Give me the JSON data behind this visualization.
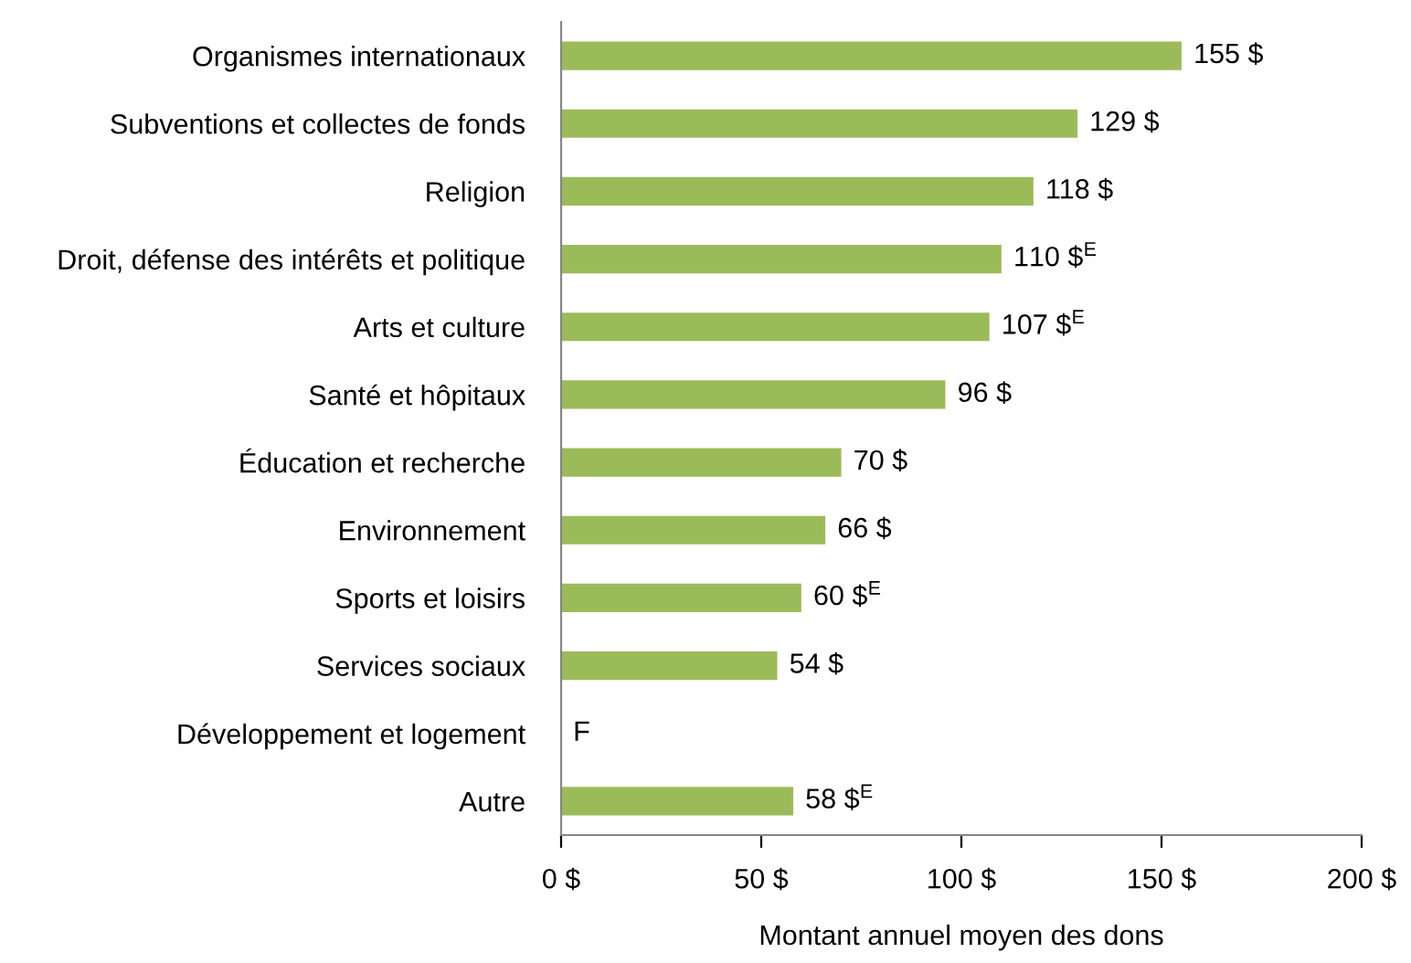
{
  "chart_data": {
    "type": "bar",
    "orientation": "horizontal",
    "xlabel": "Montant annuel moyen des dons",
    "categories": [
      "Organismes internationaux",
      "Subventions et collectes de fonds",
      "Religion",
      "Droit, défense des intérêts et politique",
      "Arts et culture",
      "Santé et hôpitaux",
      "Éducation et recherche",
      "Environnement",
      "Sports et loisirs",
      "Services sociaux",
      "Développement et logement",
      "Autre"
    ],
    "values": [
      155,
      129,
      118,
      110,
      107,
      96,
      70,
      66,
      60,
      54,
      null,
      58
    ],
    "value_labels": [
      "155 $",
      "129 $",
      "118 $",
      "110 $$^{E}$",
      "107 $$^{E}$",
      "96 $",
      "70 $",
      "66 $",
      "60 $$^{E}$",
      "54 $",
      "F",
      "58 $$^{E}$"
    ],
    "color": "#9bbb59",
    "xlim": [
      0,
      200
    ],
    "xticks": [
      {
        "value": 0,
        "label": "0 $"
      },
      {
        "value": 50,
        "label": "50 $"
      },
      {
        "value": 100,
        "label": "100 $"
      },
      {
        "value": 150,
        "label": "150 $"
      },
      {
        "value": 200,
        "label": "200 $"
      }
    ],
    "grid": false,
    "legend": false
  }
}
